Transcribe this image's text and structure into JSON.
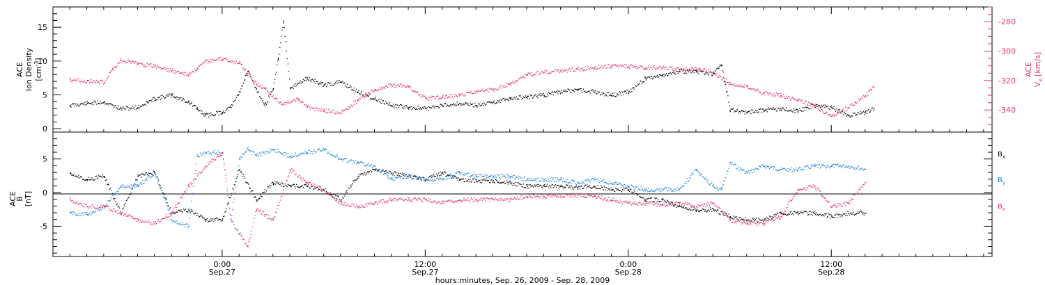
{
  "chart_data": [
    {
      "type": "scatter",
      "panel": "top",
      "ylabel_lines": [
        "ACE",
        "Ion Density",
        "[cm^-3]"
      ],
      "y2label_lines": [
        "ACE",
        "Vx [km/s]"
      ],
      "ylim": [
        -0.5,
        18
      ],
      "yticks": [
        0,
        5,
        10,
        15
      ],
      "y2lim": [
        -355,
        -270
      ],
      "y2ticks": [
        -280,
        -300,
        -320,
        -340
      ],
      "colors": {
        "density": "#000000",
        "vx": "#e8315f"
      },
      "series": [
        {
          "axis": "left",
          "color": "#000000",
          "points": [
            [
              -9.0,
              3.5
            ],
            [
              -8.0,
              3.8
            ],
            [
              -7.0,
              4.0
            ],
            [
              -6.0,
              3.0
            ],
            [
              -5.0,
              3.2
            ],
            [
              -4.0,
              4.5
            ],
            [
              -3.0,
              5.0
            ],
            [
              -2.0,
              4.0
            ],
            [
              -1.5,
              3.0
            ],
            [
              -1.0,
              2.0
            ],
            [
              0.0,
              2.5
            ],
            [
              0.5,
              3.2
            ],
            [
              1.0,
              5.5
            ],
            [
              1.5,
              8.5
            ],
            [
              2.0,
              6.0
            ],
            [
              2.5,
              3.5
            ],
            [
              3.0,
              6.0
            ],
            [
              3.3,
              10.5
            ],
            [
              3.6,
              16.0
            ],
            [
              4.0,
              6.0
            ],
            [
              5.0,
              7.5
            ],
            [
              6.0,
              6.5
            ],
            [
              7.0,
              7.0
            ],
            [
              8.0,
              5.5
            ],
            [
              9.0,
              4.5
            ],
            [
              10.0,
              3.5
            ],
            [
              11.0,
              3.2
            ],
            [
              12.0,
              3.0
            ],
            [
              13.0,
              3.5
            ],
            [
              14.0,
              3.8
            ],
            [
              15.0,
              3.5
            ],
            [
              16.0,
              4.0
            ],
            [
              17.0,
              4.5
            ],
            [
              18.0,
              4.8
            ],
            [
              19.0,
              5.0
            ],
            [
              20.0,
              5.5
            ],
            [
              21.0,
              5.8
            ],
            [
              22.0,
              5.5
            ],
            [
              23.0,
              5.0
            ],
            [
              24.0,
              5.5
            ],
            [
              25.0,
              7.5
            ],
            [
              26.0,
              8.0
            ],
            [
              27.0,
              8.5
            ],
            [
              28.0,
              8.5
            ],
            [
              29.0,
              8.2
            ],
            [
              29.5,
              9.5
            ],
            [
              30.0,
              2.8
            ],
            [
              31.0,
              2.5
            ],
            [
              32.0,
              2.8
            ],
            [
              33.0,
              3.0
            ],
            [
              34.0,
              2.7
            ],
            [
              35.0,
              3.5
            ],
            [
              36.0,
              3.2
            ],
            [
              37.0,
              2.0
            ],
            [
              38.0,
              2.5
            ],
            [
              38.5,
              3.0
            ]
          ]
        },
        {
          "axis": "right",
          "color": "#e8315f",
          "points": [
            [
              -9.0,
              -319
            ],
            [
              -8.0,
              -320
            ],
            [
              -7.0,
              -321
            ],
            [
              -6.5,
              -312
            ],
            [
              -6.0,
              -306
            ],
            [
              -5.0,
              -308
            ],
            [
              -4.0,
              -310
            ],
            [
              -3.0,
              -313
            ],
            [
              -2.0,
              -316
            ],
            [
              -1.5,
              -312
            ],
            [
              -1.0,
              -307
            ],
            [
              0.0,
              -305
            ],
            [
              1.0,
              -308
            ],
            [
              2.0,
              -322
            ],
            [
              2.5,
              -325
            ],
            [
              3.5,
              -336
            ],
            [
              4.5,
              -332
            ],
            [
              5.0,
              -338
            ],
            [
              6.0,
              -340
            ],
            [
              7.0,
              -342
            ],
            [
              8.0,
              -333
            ],
            [
              9.0,
              -326
            ],
            [
              10.0,
              -323
            ],
            [
              11.0,
              -324
            ],
            [
              12.0,
              -332
            ],
            [
              13.0,
              -331
            ],
            [
              14.0,
              -330
            ],
            [
              15.0,
              -327
            ],
            [
              16.0,
              -326
            ],
            [
              17.0,
              -322
            ],
            [
              18.0,
              -316
            ],
            [
              19.0,
              -314
            ],
            [
              20.0,
              -313
            ],
            [
              21.0,
              -312
            ],
            [
              22.0,
              -311
            ],
            [
              23.0,
              -310
            ],
            [
              24.0,
              -310
            ],
            [
              25.0,
              -311
            ],
            [
              26.0,
              -311
            ],
            [
              27.0,
              -312
            ],
            [
              28.0,
              -312
            ],
            [
              29.0,
              -314
            ],
            [
              30.0,
              -322
            ],
            [
              31.0,
              -324
            ],
            [
              32.0,
              -328
            ],
            [
              33.0,
              -330
            ],
            [
              34.0,
              -333
            ],
            [
              35.0,
              -337
            ],
            [
              36.0,
              -344
            ],
            [
              37.0,
              -338
            ],
            [
              38.0,
              -330
            ],
            [
              38.5,
              -324
            ]
          ]
        }
      ]
    },
    {
      "type": "scatter",
      "panel": "bottom",
      "ylabel_lines": [
        "ACE",
        "B",
        "[nT]"
      ],
      "ylim": [
        -9.5,
        9
      ],
      "yticks": [
        -5,
        0,
        5
      ],
      "zero_line": true,
      "legend": [
        "Bx",
        "By",
        "Bz"
      ],
      "legend_position": "right",
      "series": [
        {
          "name": "Bx",
          "color": "#000000",
          "points": [
            [
              -9.0,
              3.0
            ],
            [
              -8.0,
              2.0
            ],
            [
              -7.0,
              2.5
            ],
            [
              -6.0,
              -3.0
            ],
            [
              -5.0,
              2.5
            ],
            [
              -4.0,
              3.0
            ],
            [
              -3.0,
              -3.0
            ],
            [
              -2.0,
              -2.5
            ],
            [
              -1.0,
              -4.0
            ],
            [
              0.0,
              -4.0
            ],
            [
              1.0,
              3.5
            ],
            [
              2.0,
              -1.0
            ],
            [
              3.0,
              1.5
            ],
            [
              4.0,
              1.0
            ],
            [
              5.0,
              1.0
            ],
            [
              6.0,
              0.5
            ],
            [
              7.0,
              -1.0
            ],
            [
              8.0,
              2.5
            ],
            [
              9.0,
              3.5
            ],
            [
              10.0,
              3.0
            ],
            [
              11.0,
              2.5
            ],
            [
              12.0,
              2.0
            ],
            [
              13.0,
              3.0
            ],
            [
              14.0,
              2.0
            ],
            [
              15.0,
              1.8
            ],
            [
              16.0,
              1.8
            ],
            [
              17.0,
              1.5
            ],
            [
              18.0,
              1.0
            ],
            [
              19.0,
              1.0
            ],
            [
              20.0,
              1.0
            ],
            [
              21.0,
              0.8
            ],
            [
              22.0,
              1.0
            ],
            [
              23.0,
              0.5
            ],
            [
              24.0,
              0.5
            ],
            [
              25.0,
              -1.0
            ],
            [
              26.0,
              -1.0
            ],
            [
              27.0,
              -2.0
            ],
            [
              28.0,
              -2.5
            ],
            [
              29.0,
              -2.5
            ],
            [
              30.0,
              -3.5
            ],
            [
              31.0,
              -4.0
            ],
            [
              32.0,
              -4.0
            ],
            [
              33.0,
              -3.0
            ],
            [
              34.0,
              -3.0
            ],
            [
              35.0,
              -3.0
            ],
            [
              36.0,
              -3.5
            ],
            [
              37.0,
              -3.0
            ],
            [
              38.0,
              -3.0
            ]
          ]
        },
        {
          "name": "By",
          "color": "#1e7fd9",
          "points": [
            [
              -9.0,
              -3.0
            ],
            [
              -8.0,
              -3.2
            ],
            [
              -7.0,
              -2.0
            ],
            [
              -6.0,
              1.0
            ],
            [
              -5.0,
              1.0
            ],
            [
              -4.0,
              3.0
            ],
            [
              -3.0,
              -4.0
            ],
            [
              -2.0,
              -5.0
            ],
            [
              -1.5,
              5.5
            ],
            [
              -1.0,
              6.0
            ],
            [
              0.0,
              6.0
            ],
            [
              0.5,
              -4.0
            ],
            [
              1.0,
              5.0
            ],
            [
              1.5,
              6.5
            ],
            [
              2.0,
              5.5
            ],
            [
              3.0,
              6.5
            ],
            [
              4.0,
              5.5
            ],
            [
              5.0,
              6.0
            ],
            [
              6.0,
              6.5
            ],
            [
              7.0,
              5.0
            ],
            [
              8.0,
              4.5
            ],
            [
              9.0,
              4.0
            ],
            [
              10.0,
              2.0
            ],
            [
              11.0,
              2.5
            ],
            [
              12.0,
              2.0
            ],
            [
              13.0,
              2.0
            ],
            [
              14.0,
              3.0
            ],
            [
              15.0,
              2.5
            ],
            [
              16.0,
              2.5
            ],
            [
              17.0,
              2.5
            ],
            [
              18.0,
              2.0
            ],
            [
              19.0,
              2.0
            ],
            [
              20.0,
              2.0
            ],
            [
              21.0,
              1.5
            ],
            [
              22.0,
              2.0
            ],
            [
              23.0,
              1.5
            ],
            [
              24.0,
              1.0
            ],
            [
              25.0,
              0.5
            ],
            [
              26.0,
              0.5
            ],
            [
              27.0,
              0.5
            ],
            [
              28.0,
              3.5
            ],
            [
              29.0,
              1.0
            ],
            [
              29.5,
              0.5
            ],
            [
              30.0,
              4.5
            ],
            [
              31.0,
              3.0
            ],
            [
              32.0,
              4.0
            ],
            [
              33.0,
              3.5
            ],
            [
              34.0,
              3.5
            ],
            [
              35.0,
              4.0
            ],
            [
              36.0,
              4.0
            ],
            [
              37.0,
              4.0
            ],
            [
              38.0,
              3.5
            ]
          ]
        },
        {
          "name": "Bz",
          "color": "#e8315f",
          "points": [
            [
              -9.0,
              -1.0
            ],
            [
              -8.0,
              -2.0
            ],
            [
              -7.0,
              -2.0
            ],
            [
              -6.0,
              -3.0
            ],
            [
              -5.0,
              -4.0
            ],
            [
              -4.0,
              -4.5
            ],
            [
              -3.0,
              -3.0
            ],
            [
              -2.0,
              1.0
            ],
            [
              -1.0,
              4.0
            ],
            [
              0.0,
              6.0
            ],
            [
              0.5,
              -4.0
            ],
            [
              1.0,
              -6.0
            ],
            [
              1.5,
              -8.0
            ],
            [
              2.0,
              -2.5
            ],
            [
              3.0,
              -4.0
            ],
            [
              4.0,
              3.5
            ],
            [
              5.0,
              1.5
            ],
            [
              6.0,
              0.5
            ],
            [
              7.0,
              -1.5
            ],
            [
              8.0,
              -2.0
            ],
            [
              9.0,
              -1.5
            ],
            [
              10.0,
              -1.0
            ],
            [
              11.0,
              -1.0
            ],
            [
              12.0,
              -1.0
            ],
            [
              13.0,
              -1.5
            ],
            [
              14.0,
              -1.0
            ],
            [
              15.0,
              -1.0
            ],
            [
              16.0,
              -1.0
            ],
            [
              17.0,
              -1.0
            ],
            [
              18.0,
              -0.5
            ],
            [
              19.0,
              -0.5
            ],
            [
              20.0,
              -0.5
            ],
            [
              21.0,
              -0.3
            ],
            [
              22.0,
              -0.5
            ],
            [
              23.0,
              -1.0
            ],
            [
              24.0,
              -1.5
            ],
            [
              25.0,
              -1.5
            ],
            [
              26.0,
              -1.8
            ],
            [
              27.0,
              -1.5
            ],
            [
              28.0,
              -2.0
            ],
            [
              29.0,
              -1.5
            ],
            [
              30.0,
              -4.0
            ],
            [
              31.0,
              -4.5
            ],
            [
              32.0,
              -4.5
            ],
            [
              33.0,
              -3.5
            ],
            [
              34.0,
              0.5
            ],
            [
              35.0,
              1.0
            ],
            [
              36.0,
              -2.0
            ],
            [
              37.0,
              -1.5
            ],
            [
              38.0,
              1.5
            ]
          ]
        }
      ]
    }
  ],
  "x_axis": {
    "label": "hours:minutes, Sep. 26, 2009 - Sep. 28, 2009",
    "xlim_hours": [
      -10.0,
      45.5
    ],
    "major_ticks": [
      {
        "hour": 0,
        "time": "0:00",
        "date": "Sep.27"
      },
      {
        "hour": 12,
        "time": "12:00",
        "date": "Sep.27"
      },
      {
        "hour": 24,
        "time": "0:00",
        "date": "Sep.28"
      },
      {
        "hour": 36,
        "time": "12:00",
        "date": "Sep.28"
      }
    ]
  },
  "labels": {
    "top_left_1": "ACE",
    "top_left_2": "Ion Density",
    "top_left_3": "[cm",
    "top_left_sup": "-3",
    "top_left_close": "]",
    "top_right_1": "ACE",
    "top_right_2": "V",
    "top_right_sub": "x",
    "top_right_3": "[km/s]",
    "bot_left_1": "ACE",
    "bot_left_2": "B",
    "bot_left_3": "[nT]",
    "legend_B": "B",
    "legend_x": "x",
    "legend_y": "y",
    "legend_z": "z"
  }
}
